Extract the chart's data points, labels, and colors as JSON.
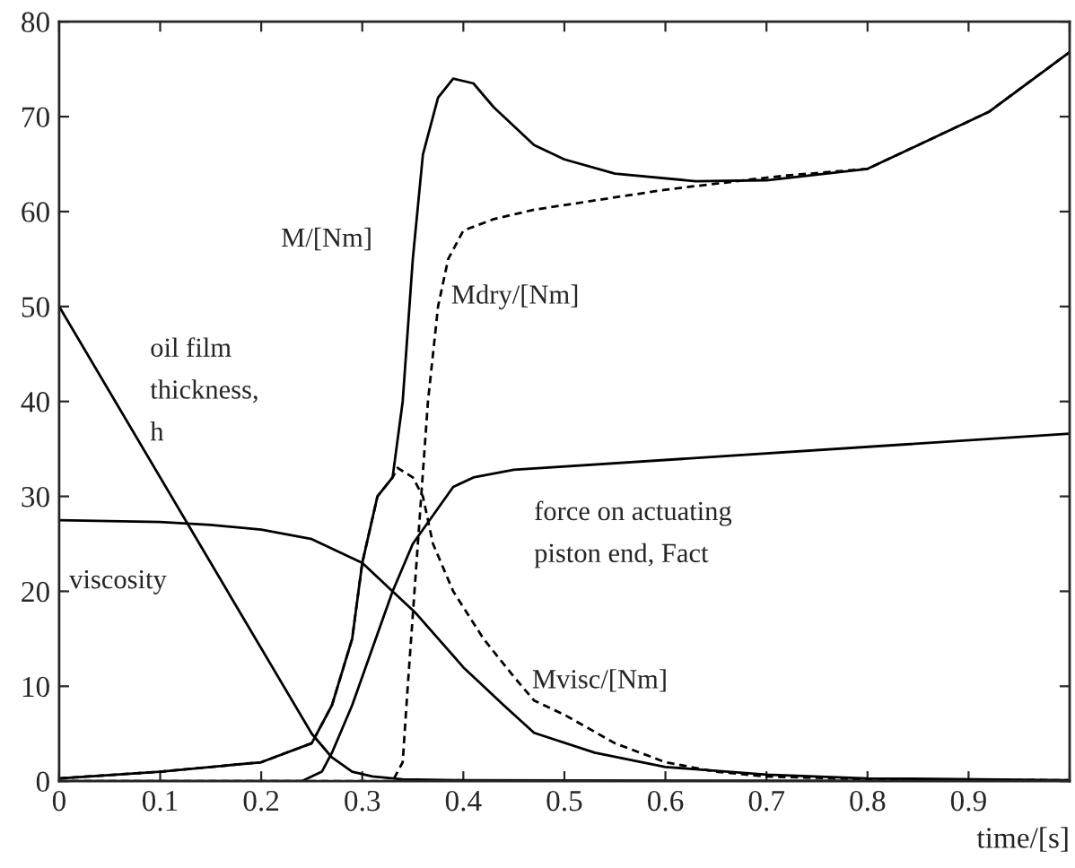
{
  "chart_data": {
    "type": "line",
    "xlabel": "time/[s]",
    "xlim": [
      0,
      1
    ],
    "ylim": [
      0,
      80
    ],
    "xticks": [
      0,
      0.1,
      0.2,
      0.3,
      0.4,
      0.5,
      0.6,
      0.7,
      0.8,
      0.9,
      {
        "value": 1,
        "label": null
      }
    ],
    "yticks": [
      0,
      10,
      20,
      30,
      40,
      50,
      60,
      70,
      80
    ],
    "grid": false,
    "legend": false,
    "series": [
      {
        "name": "M/[Nm]",
        "color": "#000000",
        "line_style": "solid",
        "x": [
          0,
          0.1,
          0.2,
          0.25,
          0.27,
          0.29,
          0.3,
          0.315,
          0.33,
          0.34,
          0.35,
          0.36,
          0.375,
          0.39,
          0.41,
          0.43,
          0.47,
          0.5,
          0.55,
          0.63,
          0.7,
          0.8,
          0.92,
          1.0
        ],
        "values": [
          0.3,
          1,
          2,
          4,
          8,
          15,
          23,
          30,
          32,
          40,
          55,
          66,
          72,
          74,
          73.5,
          71,
          67,
          65.5,
          64,
          63.2,
          63.3,
          64.5,
          70.5,
          76.8
        ]
      },
      {
        "name": "Mdry/[Nm]",
        "color": "#000000",
        "line_style": "dashed",
        "x": [
          0,
          0.33,
          0.34,
          0.345,
          0.355,
          0.365,
          0.375,
          0.385,
          0.4,
          0.43,
          0.47,
          0.6,
          0.686,
          0.72,
          0.8,
          0.92,
          1.0
        ],
        "values": [
          0,
          0,
          2,
          10,
          25,
          40,
          50,
          55,
          58,
          59.2,
          60.2,
          62.3,
          63.4,
          63.8,
          64.5,
          70.5,
          76.8
        ]
      },
      {
        "name": "Mvisc/[Nm]",
        "color": "#000000",
        "line_style": "dashed",
        "x": [
          0,
          0.1,
          0.2,
          0.25,
          0.27,
          0.29,
          0.3,
          0.315,
          0.33,
          0.335,
          0.35,
          0.36,
          0.37,
          0.39,
          0.42,
          0.45,
          0.47,
          0.5,
          0.55,
          0.6,
          0.65,
          0.7,
          0.8,
          1.0
        ],
        "values": [
          0.3,
          1,
          2,
          4,
          8,
          15,
          23,
          30,
          32,
          33,
          32,
          30,
          25,
          20,
          15,
          11,
          8.5,
          7,
          4,
          2,
          1,
          0.5,
          0.2,
          0.1
        ]
      },
      {
        "name": "viscosity",
        "color": "#000000",
        "line_style": "solid",
        "x": [
          0,
          0.1,
          0.15,
          0.2,
          0.25,
          0.3,
          0.33,
          0.353,
          0.4,
          0.44,
          0.47,
          0.53,
          0.6,
          0.7,
          0.8,
          1.0
        ],
        "values": [
          27.5,
          27.3,
          27,
          26.5,
          25.5,
          23,
          20,
          17.7,
          12,
          8,
          5.1,
          3,
          1.5,
          0.7,
          0.3,
          0.1
        ]
      },
      {
        "name": "oil film\nthickness,\nh",
        "color": "#000000",
        "line_style": "solid",
        "x": [
          0,
          0.12,
          0.25,
          0.27,
          0.29,
          0.31,
          0.34,
          0.4,
          1.0
        ],
        "values": [
          50,
          28.4,
          5,
          2.5,
          1,
          0.5,
          0.2,
          0.1,
          0
        ]
      },
      {
        "name": "force on actuating\npiston end, Fact",
        "color": "#000000",
        "line_style": "solid",
        "x": [
          0,
          0.24,
          0.26,
          0.27,
          0.29,
          0.31,
          0.33,
          0.35,
          0.37,
          0.39,
          0.41,
          0.45,
          1.0
        ],
        "values": [
          0,
          0,
          1,
          3,
          8,
          14,
          20,
          25,
          28,
          31,
          32,
          32.8,
          36.6
        ]
      }
    ]
  }
}
